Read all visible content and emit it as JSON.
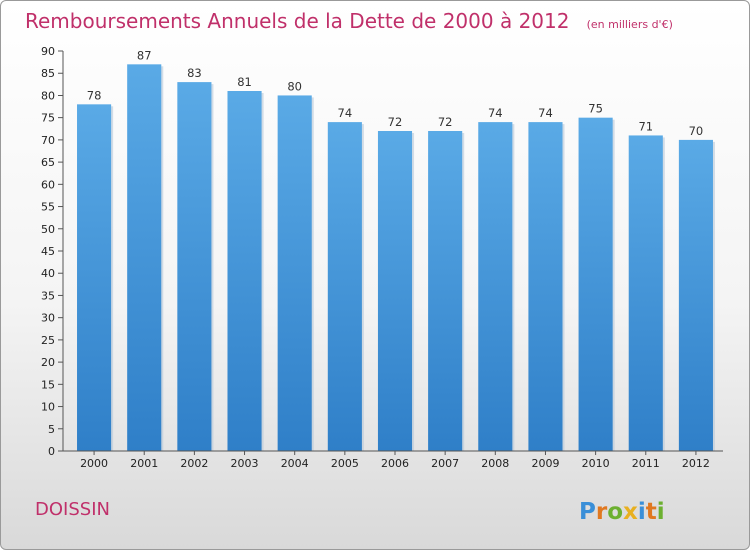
{
  "chart_data": {
    "type": "bar",
    "title": "Remboursements Annuels de la Dette de 2000 à 2012",
    "unit": "(en milliers d'€)",
    "categories": [
      "2000",
      "2001",
      "2002",
      "2003",
      "2004",
      "2005",
      "2006",
      "2007",
      "2008",
      "2009",
      "2010",
      "2011",
      "2012"
    ],
    "values": [
      78,
      87,
      83,
      81,
      80,
      74,
      72,
      72,
      74,
      74,
      75,
      71,
      70
    ],
    "ylim": [
      0,
      90
    ],
    "yticks": [
      0,
      5,
      10,
      15,
      20,
      25,
      30,
      35,
      40,
      45,
      50,
      55,
      60,
      65,
      70,
      75,
      80,
      85,
      90
    ],
    "xlabel": "",
    "ylabel": "",
    "grid": false,
    "bar_color": "#4f9fe0",
    "bar_color_dark": "#2f7fc8",
    "axis_color": "#555555"
  },
  "place": "DOISSIN",
  "logo": {
    "letters": [
      "P",
      "r",
      "o",
      "x",
      "i",
      "t",
      "i"
    ],
    "colors": [
      "#3a8fd8",
      "#e07820",
      "#6cb030",
      "#e8b020",
      "#3a8fd8",
      "#e07820",
      "#6cb030"
    ]
  }
}
